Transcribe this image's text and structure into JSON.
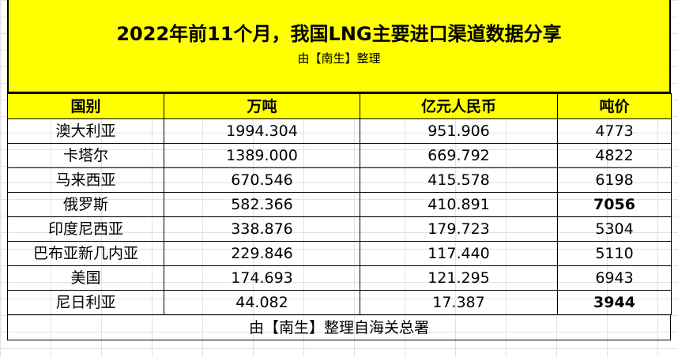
{
  "title": "2022年前11个月，我国LNG主要进口渠道数据分享",
  "subtitle": "由【南生】整理",
  "headers": [
    "国别",
    "万吨",
    "亿元人民币",
    "吨价"
  ],
  "rows": [
    {
      "country": "澳大利亚",
      "tons": "1994.304",
      "cny": "951.906",
      "price": "4773",
      "price_bold": false
    },
    {
      "country": "卡塔尔",
      "tons": "1389.000",
      "cny": "669.792",
      "price": "4822",
      "price_bold": false
    },
    {
      "country": "马来西亚",
      "tons": "670.546",
      "cny": "415.578",
      "price": "6198",
      "price_bold": false
    },
    {
      "country": "俄罗斯",
      "tons": "582.366",
      "cny": "410.891",
      "price": "7056",
      "price_bold": true
    },
    {
      "country": "印度尼西亚",
      "tons": "338.876",
      "cny": "179.723",
      "price": "5304",
      "price_bold": false
    },
    {
      "country": "巴布亚新几内亚",
      "tons": "229.846",
      "cny": "117.440",
      "price": "5110",
      "price_bold": false
    },
    {
      "country": "美国",
      "tons": "174.693",
      "cny": "121.295",
      "price": "6943",
      "price_bold": false
    },
    {
      "country": "尼日利亚",
      "tons": "44.082",
      "cny": "17.387",
      "price": "3944",
      "price_bold": true
    }
  ],
  "footer": "由【南生】整理自海关总署",
  "colors": {
    "header_bg": "#ffff00",
    "border": "#000000"
  }
}
